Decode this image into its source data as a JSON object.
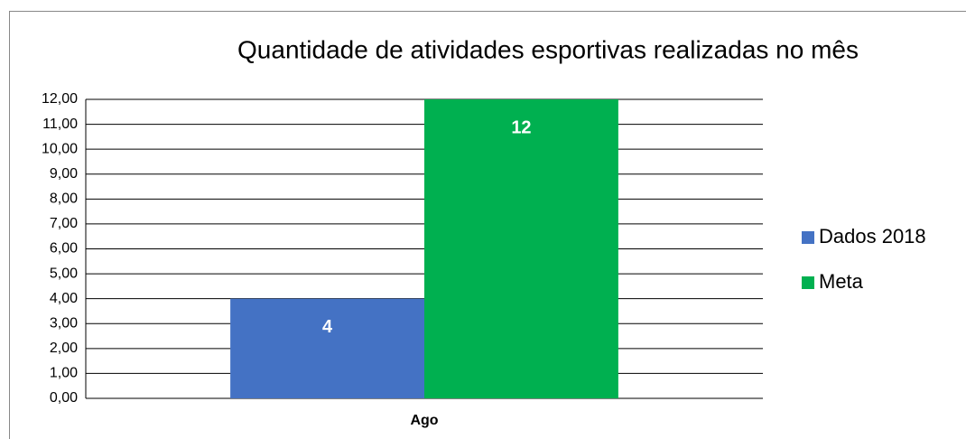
{
  "chart_data": {
    "type": "bar",
    "title": "Quantidade de atividades esportivas realizadas no mês",
    "categories": [
      "Ago"
    ],
    "series": [
      {
        "name": "Dados 2018",
        "color": "#4472c4",
        "values": [
          4
        ]
      },
      {
        "name": "Meta",
        "color": "#00b050",
        "values": [
          12
        ]
      }
    ],
    "ylim": [
      0,
      12
    ],
    "yticks": [
      {
        "value": 0,
        "label": "0,00"
      },
      {
        "value": 1,
        "label": "1,00"
      },
      {
        "value": 2,
        "label": "2,00"
      },
      {
        "value": 3,
        "label": "3,00"
      },
      {
        "value": 4,
        "label": "4,00"
      },
      {
        "value": 5,
        "label": "5,00"
      },
      {
        "value": 6,
        "label": "6,00"
      },
      {
        "value": 7,
        "label": "7,00"
      },
      {
        "value": 8,
        "label": "8,00"
      },
      {
        "value": 9,
        "label": "9,00"
      },
      {
        "value": 10,
        "label": "10,00"
      },
      {
        "value": 11,
        "label": "11,00"
      },
      {
        "value": 12,
        "label": "12,00"
      }
    ],
    "grid": true,
    "legend": "right"
  }
}
